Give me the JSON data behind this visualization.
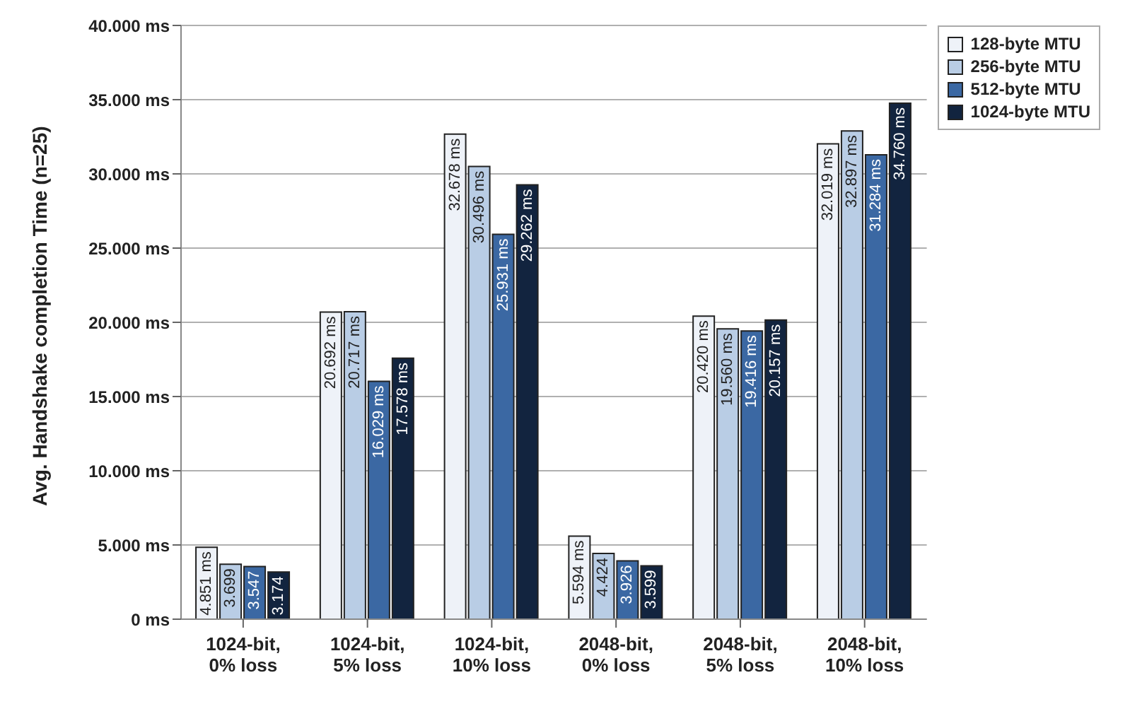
{
  "chart_data": {
    "type": "bar",
    "ylabel": "Avg. Handshake completion Time (n=25)",
    "categories": [
      "1024-bit, 0% loss",
      "1024-bit, 5% loss",
      "1024-bit, 10% loss",
      "2048-bit, 0% loss",
      "2048-bit, 5% loss",
      "2048-bit, 10% loss"
    ],
    "series": [
      {
        "name": "128-byte MTU",
        "color": "#eef2f8",
        "values": [
          4851,
          20692,
          32678,
          5594,
          20420,
          32019
        ],
        "value_labels": [
          "4.851 ms",
          "20.692 ms",
          "32.678 ms",
          "5.594 ms",
          "20.420 ms",
          "32.019 ms"
        ]
      },
      {
        "name": "256-byte MTU",
        "color": "#b9cde5",
        "values": [
          3699,
          20717,
          30496,
          4424,
          19560,
          32897
        ],
        "value_labels": [
          "3.699",
          "20.717 ms",
          "30.496 ms",
          "4.424",
          "19.560 ms",
          "32.897 ms"
        ]
      },
      {
        "name": "512-byte MTU",
        "color": "#3b68a3",
        "values": [
          3547,
          16029,
          25931,
          3926,
          19416,
          31284
        ],
        "value_labels": [
          "3.547",
          "16.029 ms",
          "25.931 ms",
          "3.926",
          "19.416 ms",
          "31.284 ms"
        ]
      },
      {
        "name": "1024-byte MTU",
        "color": "#12243f",
        "values": [
          3174,
          17578,
          29262,
          3599,
          20157,
          34760
        ],
        "value_labels": [
          "3.174",
          "17.578 ms",
          "29.262 ms",
          "3.599",
          "20.157 ms",
          "34.760 ms"
        ]
      }
    ],
    "ylim": [
      0,
      40000
    ],
    "yticks": [
      {
        "value": 0,
        "label": "0 ms"
      },
      {
        "value": 5000,
        "label": "5.000 ms"
      },
      {
        "value": 10000,
        "label": "10.000 ms"
      },
      {
        "value": 15000,
        "label": "15.000 ms"
      },
      {
        "value": 20000,
        "label": "20.000 ms"
      },
      {
        "value": 25000,
        "label": "25.000 ms"
      },
      {
        "value": 30000,
        "label": "30.000 ms"
      },
      {
        "value": 35000,
        "label": "35.000 ms"
      },
      {
        "value": 40000,
        "label": "40.000 ms"
      }
    ],
    "grid": "y",
    "legend": "top right"
  }
}
